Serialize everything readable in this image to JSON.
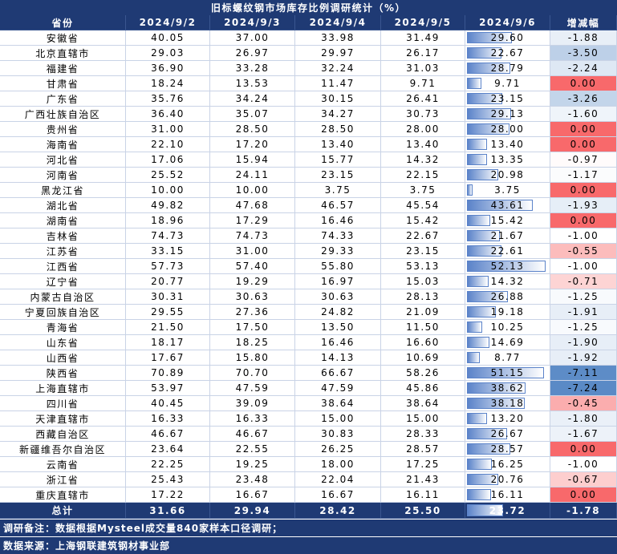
{
  "title": "旧标螺纹钢市场库存比例调研统计（%）",
  "header": [
    "省份",
    "2024/9/2",
    "2024/9/3",
    "2024/9/4",
    "2024/9/5",
    "2024/9/6",
    "增减幅"
  ],
  "rows": [
    [
      "安徽省",
      "40.05",
      "37.00",
      "33.98",
      "31.49",
      "29.60",
      "-1.88"
    ],
    [
      "北京直辖市",
      "29.03",
      "26.97",
      "29.97",
      "26.17",
      "22.67",
      "-3.50"
    ],
    [
      "福建省",
      "36.90",
      "33.28",
      "32.24",
      "31.03",
      "28.79",
      "-2.24"
    ],
    [
      "甘肃省",
      "18.24",
      "13.53",
      "11.47",
      "9.71",
      "9.71",
      "0.00"
    ],
    [
      "广东省",
      "35.76",
      "34.24",
      "30.15",
      "26.41",
      "23.15",
      "-3.26"
    ],
    [
      "广西壮族自治区",
      "36.40",
      "35.07",
      "34.27",
      "30.73",
      "29.13",
      "-1.60"
    ],
    [
      "贵州省",
      "31.00",
      "28.50",
      "28.50",
      "28.00",
      "28.00",
      "0.00"
    ],
    [
      "海南省",
      "22.10",
      "17.20",
      "13.40",
      "13.40",
      "13.40",
      "0.00"
    ],
    [
      "河北省",
      "17.06",
      "15.94",
      "15.77",
      "14.32",
      "13.35",
      "-0.97"
    ],
    [
      "河南省",
      "25.52",
      "24.11",
      "23.15",
      "22.15",
      "20.98",
      "-1.17"
    ],
    [
      "黑龙江省",
      "10.00",
      "10.00",
      "3.75",
      "3.75",
      "3.75",
      "0.00"
    ],
    [
      "湖北省",
      "49.82",
      "47.68",
      "46.57",
      "45.54",
      "43.61",
      "-1.93"
    ],
    [
      "湖南省",
      "18.96",
      "17.29",
      "16.46",
      "15.42",
      "15.42",
      "0.00"
    ],
    [
      "吉林省",
      "74.73",
      "74.73",
      "74.33",
      "22.67",
      "21.67",
      "-1.00"
    ],
    [
      "江苏省",
      "33.15",
      "31.00",
      "29.33",
      "23.15",
      "22.61",
      "-0.55"
    ],
    [
      "江西省",
      "57.73",
      "57.40",
      "55.80",
      "53.13",
      "52.13",
      "-1.00"
    ],
    [
      "辽宁省",
      "20.77",
      "19.29",
      "16.97",
      "15.03",
      "14.32",
      "-0.71"
    ],
    [
      "内蒙古自治区",
      "30.31",
      "30.63",
      "30.63",
      "28.13",
      "26.88",
      "-1.25"
    ],
    [
      "宁夏回族自治区",
      "29.55",
      "27.36",
      "24.82",
      "21.09",
      "19.18",
      "-1.91"
    ],
    [
      "青海省",
      "21.50",
      "17.50",
      "13.50",
      "11.50",
      "10.25",
      "-1.25"
    ],
    [
      "山东省",
      "18.17",
      "18.25",
      "16.46",
      "16.60",
      "14.69",
      "-1.90"
    ],
    [
      "山西省",
      "17.67",
      "15.80",
      "14.13",
      "10.69",
      "8.77",
      "-1.92"
    ],
    [
      "陕西省",
      "70.89",
      "70.70",
      "66.67",
      "58.26",
      "51.15",
      "-7.11"
    ],
    [
      "上海直辖市",
      "53.97",
      "47.59",
      "47.59",
      "45.86",
      "38.62",
      "-7.24"
    ],
    [
      "四川省",
      "40.45",
      "39.09",
      "38.64",
      "38.64",
      "38.18",
      "-0.45"
    ],
    [
      "天津直辖市",
      "16.33",
      "16.33",
      "15.00",
      "15.00",
      "13.20",
      "-1.80"
    ],
    [
      "西藏自治区",
      "46.67",
      "46.67",
      "30.83",
      "28.33",
      "26.67",
      "-1.67"
    ],
    [
      "新疆维吾尔自治区",
      "23.64",
      "22.55",
      "26.25",
      "28.57",
      "28.57",
      "0.00"
    ],
    [
      "云南省",
      "22.25",
      "19.25",
      "18.00",
      "17.25",
      "16.25",
      "-1.00"
    ],
    [
      "浙江省",
      "25.43",
      "23.48",
      "22.04",
      "21.43",
      "20.76",
      "-0.67"
    ],
    [
      "重庆直辖市",
      "17.22",
      "16.67",
      "16.67",
      "16.11",
      "16.11",
      "0.00"
    ]
  ],
  "total": [
    "总计",
    "31.66",
    "29.94",
    "28.42",
    "25.50",
    "23.72",
    "-1.78"
  ],
  "notes": [
    "调研备注：数据根据Mysteel成交量840家样本口径调研；",
    "数据来源：上海钢联建筑钢材事业部"
  ]
}
